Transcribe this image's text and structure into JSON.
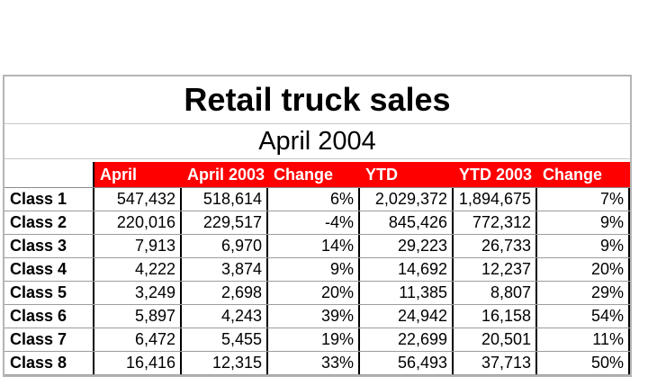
{
  "chart_data": {
    "type": "table",
    "title": "Retail truck sales",
    "subtitle": "April 2004",
    "columns": [
      "",
      "April",
      "April 2003",
      "Change",
      "YTD",
      "YTD 2003",
      "Change"
    ],
    "rows": [
      [
        "Class 1",
        "547,432",
        "518,614",
        "6%",
        "2,029,372",
        "1,894,675",
        "7%"
      ],
      [
        "Class 2",
        "220,016",
        "229,517",
        "-4%",
        "845,426",
        "772,312",
        "9%"
      ],
      [
        "Class 3",
        "7,913",
        "6,970",
        "14%",
        "29,223",
        "26,733",
        "9%"
      ],
      [
        "Class 4",
        "4,222",
        "3,874",
        "9%",
        "14,692",
        "12,237",
        "20%"
      ],
      [
        "Class 5",
        "3,249",
        "2,698",
        "20%",
        "11,385",
        "8,807",
        "29%"
      ],
      [
        "Class 6",
        "5,897",
        "4,243",
        "39%",
        "24,942",
        "16,158",
        "54%"
      ],
      [
        "Class 7",
        "6,472",
        "5,455",
        "19%",
        "22,699",
        "20,501",
        "11%"
      ],
      [
        "Class 8",
        "16,416",
        "12,315",
        "33%",
        "56,493",
        "37,713",
        "50%"
      ]
    ],
    "layout": {
      "legend": false,
      "grid": true,
      "last_row_clipped_by_viewport": true
    },
    "colors": {
      "header_bg": "#fe0000",
      "header_text": "#ffffff",
      "column_separator": "#000000",
      "row_gridline": "#9c9c9c",
      "outer_border": "#b5b5b5",
      "text": "#000000",
      "background": "#ffffff"
    }
  }
}
